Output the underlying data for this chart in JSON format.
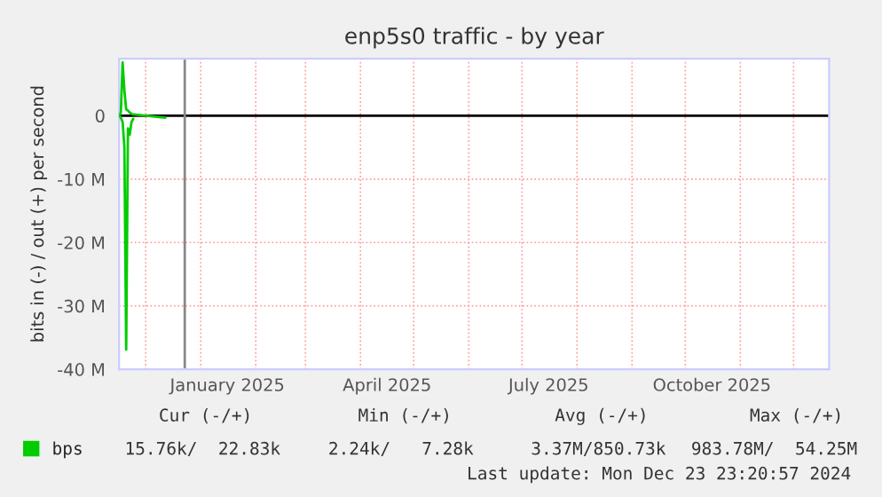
{
  "chart_data": {
    "type": "line",
    "title": "enp5s0 traffic - by year",
    "ylabel": "bits in (-) / out (+) per second",
    "series": [
      {
        "name": "bps",
        "color": "#00cc00",
        "x": [
          "2024-11-16",
          "2024-11-17",
          "2024-11-18",
          "2024-11-19",
          "2024-11-20",
          "2024-11-21",
          "2024-11-22",
          "2024-11-23",
          "2024-11-24",
          "2024-12-12"
        ],
        "values": [
          0,
          0.5,
          8.4,
          4,
          1,
          0.8,
          0.5,
          0.3,
          0.2,
          -0.3
        ]
      },
      {
        "color": "#00cc00",
        "x": [
          "2024-11-16",
          "2024-11-17",
          "2024-11-18",
          "2024-11-19",
          "2024-11-20",
          "2024-11-21",
          "2024-11-22",
          "2024-11-23",
          "2024-11-24"
        ],
        "values": [
          0,
          -0.3,
          -1,
          -5,
          -36.9,
          -2,
          -3,
          -1,
          -0.5
        ]
      }
    ],
    "xlim": [
      "2024-11-16",
      "2025-12-21"
    ],
    "xticks": [
      {
        "value": "2024-12-01",
        "label": null
      },
      {
        "value": "2025-01-01",
        "label": null
      },
      {
        "value": "2025-01-16",
        "label": "January 2025"
      },
      {
        "value": "2025-02-01",
        "label": null
      },
      {
        "value": "2025-03-01",
        "label": null
      },
      {
        "value": "2025-04-01",
        "label": null
      },
      {
        "value": "2025-04-16",
        "label": "April 2025"
      },
      {
        "value": "2025-05-01",
        "label": null
      },
      {
        "value": "2025-06-01",
        "label": null
      },
      {
        "value": "2025-07-01",
        "label": null
      },
      {
        "value": "2025-07-16",
        "label": "July 2025"
      },
      {
        "value": "2025-08-01",
        "label": null
      },
      {
        "value": "2025-09-01",
        "label": null
      },
      {
        "value": "2025-10-01",
        "label": null
      },
      {
        "value": "2025-10-16",
        "label": "October 2025"
      },
      {
        "value": "2025-11-01",
        "label": null
      },
      {
        "value": "2025-12-01",
        "label": null
      }
    ],
    "ylim": [
      -40,
      9
    ],
    "yticks": [
      {
        "value": -40,
        "label": "-40 M"
      },
      {
        "value": -30,
        "label": "-30 M"
      },
      {
        "value": -20,
        "label": "-20 M"
      },
      {
        "value": -10,
        "label": "-10 M"
      },
      0
    ],
    "ref_lines": [
      {
        "axis": "y",
        "value": 0,
        "color": "#000000"
      },
      {
        "axis": "x",
        "value": "2024-12-23",
        "color": "#888888"
      }
    ],
    "grid": true,
    "legend": "bottom left",
    "annotations": [
      "Cur (-/+)",
      "Min (-/+)",
      "Avg (-/+)",
      "Max (-/+)",
      "15.76k/  22.83k",
      "2.24k/   7.28k",
      "3.37M/850.73k",
      "983.78M/  54.25M",
      "Last update: Mon Dec 23 23:20:57 2024"
    ]
  }
}
